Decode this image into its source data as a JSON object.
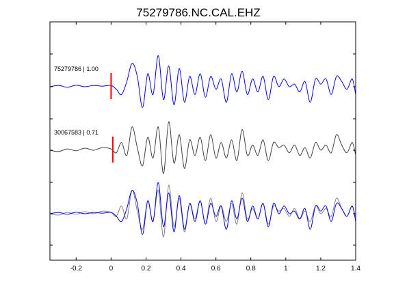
{
  "chart_data": {
    "type": "line",
    "title": "75279786.NC.CAL.EHZ",
    "xlabel": "",
    "ylabel": "",
    "xlim": [
      -0.35,
      1.4
    ],
    "xticks": [
      -0.2,
      0,
      0.2,
      0.4,
      0.6,
      0.8,
      1,
      1.2,
      1.4
    ],
    "xtick_labels": [
      "-0.2",
      "0",
      "0.2",
      "0.4",
      "0.6",
      "0.8",
      "1",
      "1.2",
      "1.4"
    ],
    "grid": false,
    "colors": {
      "primary": "#0000ff",
      "secondary": "#404040",
      "overlay_gray": "#808080",
      "pick": "#ff0000"
    },
    "traces": [
      {
        "label": "75279786 | 1.00",
        "color": "#0000ff",
        "pick_time": 0.0,
        "x": [
          -0.35,
          -0.3,
          -0.25,
          -0.2,
          -0.15,
          -0.1,
          -0.05,
          0.0,
          0.03,
          0.06,
          0.09,
          0.12,
          0.15,
          0.18,
          0.21,
          0.24,
          0.27,
          0.3,
          0.33,
          0.36,
          0.39,
          0.42,
          0.45,
          0.48,
          0.51,
          0.54,
          0.57,
          0.6,
          0.63,
          0.66,
          0.69,
          0.72,
          0.75,
          0.78,
          0.81,
          0.84,
          0.87,
          0.9,
          0.93,
          0.96,
          0.99,
          1.02,
          1.05,
          1.08,
          1.11,
          1.14,
          1.17,
          1.2,
          1.23,
          1.26,
          1.29,
          1.32,
          1.35,
          1.38,
          1.4
        ],
        "y": [
          0.0,
          0.05,
          -0.02,
          0.06,
          0.0,
          0.05,
          0.02,
          0.05,
          -0.1,
          -0.3,
          0.2,
          0.9,
          0.4,
          -0.8,
          0.5,
          -0.3,
          1.2,
          -0.5,
          0.8,
          -0.7,
          0.7,
          -0.6,
          0.4,
          -0.3,
          0.5,
          -0.4,
          0.4,
          -0.1,
          0.3,
          -0.6,
          0.5,
          -0.2,
          0.6,
          -0.3,
          0.3,
          -0.2,
          0.4,
          -0.5,
          0.4,
          0.0,
          0.3,
          0.0,
          0.1,
          -0.2,
          0.2,
          -0.6,
          0.3,
          0.1,
          0.3,
          -0.3,
          0.4,
          0.2,
          -0.1,
          0.3,
          -0.3
        ]
      },
      {
        "label": "30067583 | 0.71",
        "color": "#404040",
        "pick_time": 0.01,
        "x": [
          -0.35,
          -0.3,
          -0.25,
          -0.2,
          -0.15,
          -0.1,
          -0.05,
          0.0,
          0.03,
          0.06,
          0.09,
          0.12,
          0.15,
          0.18,
          0.21,
          0.24,
          0.27,
          0.3,
          0.33,
          0.36,
          0.39,
          0.42,
          0.45,
          0.48,
          0.51,
          0.54,
          0.57,
          0.6,
          0.63,
          0.66,
          0.69,
          0.72,
          0.75,
          0.78,
          0.81,
          0.84,
          0.87,
          0.9,
          0.93,
          0.96,
          0.99,
          1.02,
          1.05,
          1.08,
          1.11,
          1.14,
          1.17,
          1.2,
          1.23,
          1.26,
          1.29,
          1.32,
          1.35,
          1.38,
          1.4
        ],
        "y": [
          0.0,
          -0.05,
          0.05,
          -0.02,
          0.08,
          0.0,
          0.1,
          0.05,
          -0.1,
          0.3,
          -0.2,
          0.9,
          0.1,
          -0.6,
          0.5,
          -0.3,
          0.9,
          -0.9,
          1.1,
          -0.5,
          0.6,
          -0.7,
          0.4,
          -0.2,
          0.5,
          -0.4,
          0.6,
          -0.3,
          0.3,
          -0.3,
          0.4,
          -0.4,
          0.8,
          -0.2,
          0.2,
          -0.2,
          0.4,
          -0.4,
          0.3,
          0.1,
          0.2,
          -0.1,
          0.2,
          -0.2,
          0.1,
          -0.3,
          0.3,
          0.0,
          0.2,
          -0.1,
          0.6,
          0.2,
          -0.1,
          0.3,
          -0.2
        ]
      }
    ],
    "overlay": {
      "description_series": [
        "75279786",
        "30067583"
      ]
    }
  }
}
